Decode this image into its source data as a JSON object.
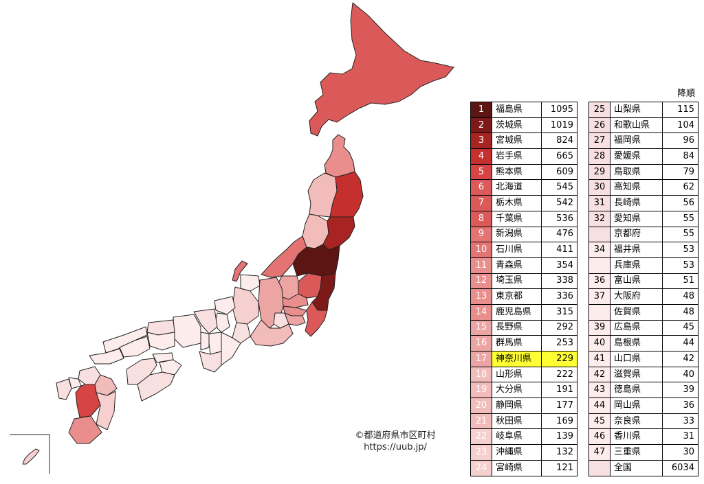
{
  "sort_label": "降順",
  "credit": {
    "line1": "©都道府県市区町村",
    "line2": "https://uub.jp/"
  },
  "colors": {
    "c1": "#5c1513",
    "c2": "#7d1a19",
    "c3": "#a82423",
    "c4": "#c52f2e",
    "c5": "#d64444",
    "c6": "#db5a59",
    "c7": "#e47474",
    "c8": "#e98e8d",
    "c9": "#eda5a4",
    "c10": "#f2bcbb",
    "c11": "#f6d0cf",
    "c12": "#f9e0e0",
    "c13": "#fcecec",
    "highlight": "#ffff33"
  },
  "ranking_left": [
    {
      "rank": "1",
      "name": "福島県",
      "value": "1095",
      "color": "c1"
    },
    {
      "rank": "2",
      "name": "茨城県",
      "value": "1019",
      "color": "c2"
    },
    {
      "rank": "3",
      "name": "宮城県",
      "value": "824",
      "color": "c3"
    },
    {
      "rank": "4",
      "name": "岩手県",
      "value": "665",
      "color": "c4"
    },
    {
      "rank": "5",
      "name": "熊本県",
      "value": "609",
      "color": "c5"
    },
    {
      "rank": "6",
      "name": "北海道",
      "value": "545",
      "color": "c6"
    },
    {
      "rank": "7",
      "name": "栃木県",
      "value": "542",
      "color": "c6"
    },
    {
      "rank": "8",
      "name": "千葉県",
      "value": "536",
      "color": "c6"
    },
    {
      "rank": "9",
      "name": "新潟県",
      "value": "476",
      "color": "c7"
    },
    {
      "rank": "10",
      "name": "石川県",
      "value": "411",
      "color": "c7"
    },
    {
      "rank": "11",
      "name": "青森県",
      "value": "354",
      "color": "c8"
    },
    {
      "rank": "12",
      "name": "埼玉県",
      "value": "338",
      "color": "c8"
    },
    {
      "rank": "13",
      "name": "東京都",
      "value": "336",
      "color": "c8"
    },
    {
      "rank": "14",
      "name": "鹿児島県",
      "value": "315",
      "color": "c8"
    },
    {
      "rank": "15",
      "name": "長野県",
      "value": "292",
      "color": "c9"
    },
    {
      "rank": "16",
      "name": "群馬県",
      "value": "253",
      "color": "c9"
    },
    {
      "rank": "17",
      "name": "神奈川県",
      "value": "229",
      "color": "c9",
      "highlight": true
    },
    {
      "rank": "18",
      "name": "山形県",
      "value": "222",
      "color": "c10"
    },
    {
      "rank": "19",
      "name": "大分県",
      "value": "191",
      "color": "c10"
    },
    {
      "rank": "20",
      "name": "静岡県",
      "value": "177",
      "color": "c10"
    },
    {
      "rank": "21",
      "name": "秋田県",
      "value": "169",
      "color": "c10"
    },
    {
      "rank": "22",
      "name": "岐阜県",
      "value": "139",
      "color": "c11"
    },
    {
      "rank": "23",
      "name": "沖縄県",
      "value": "132",
      "color": "c11"
    },
    {
      "rank": "24",
      "name": "宮崎県",
      "value": "121",
      "color": "c11"
    }
  ],
  "ranking_right": [
    {
      "rank": "25",
      "name": "山梨県",
      "value": "115",
      "color": "c12"
    },
    {
      "rank": "26",
      "name": "和歌山県",
      "value": "104",
      "color": "c12"
    },
    {
      "rank": "27",
      "name": "福岡県",
      "value": "96",
      "color": "c12"
    },
    {
      "rank": "28",
      "name": "愛媛県",
      "value": "84",
      "color": "c12"
    },
    {
      "rank": "29",
      "name": "鳥取県",
      "value": "79",
      "color": "c12"
    },
    {
      "rank": "30",
      "name": "高知県",
      "value": "62",
      "color": "c12"
    },
    {
      "rank": "31",
      "name": "長崎県",
      "value": "56",
      "color": "c12"
    },
    {
      "rank": "32",
      "name": "愛知県",
      "value": "55",
      "color": "c12"
    },
    {
      "rank": "",
      "name": "京都府",
      "value": "55",
      "color": "c12"
    },
    {
      "rank": "34",
      "name": "福井県",
      "value": "53",
      "color": "c13"
    },
    {
      "rank": "",
      "name": "兵庫県",
      "value": "53",
      "color": "c13"
    },
    {
      "rank": "36",
      "name": "富山県",
      "value": "51",
      "color": "c13"
    },
    {
      "rank": "37",
      "name": "大阪府",
      "value": "48",
      "color": "c13"
    },
    {
      "rank": "",
      "name": "佐賀県",
      "value": "48",
      "color": "c13"
    },
    {
      "rank": "39",
      "name": "広島県",
      "value": "45",
      "color": "c13"
    },
    {
      "rank": "40",
      "name": "島根県",
      "value": "44",
      "color": "c13"
    },
    {
      "rank": "41",
      "name": "山口県",
      "value": "42",
      "color": "c13"
    },
    {
      "rank": "42",
      "name": "滋賀県",
      "value": "40",
      "color": "c13"
    },
    {
      "rank": "43",
      "name": "徳島県",
      "value": "39",
      "color": "c13"
    },
    {
      "rank": "44",
      "name": "岡山県",
      "value": "36",
      "color": "c13"
    },
    {
      "rank": "45",
      "name": "奈良県",
      "value": "33",
      "color": "c13"
    },
    {
      "rank": "46",
      "name": "香川県",
      "value": "31",
      "color": "c13"
    },
    {
      "rank": "47",
      "name": "三重県",
      "value": "30",
      "color": "c13"
    },
    {
      "rank": "",
      "name": "全国",
      "value": "6034",
      "color": "c12"
    }
  ]
}
